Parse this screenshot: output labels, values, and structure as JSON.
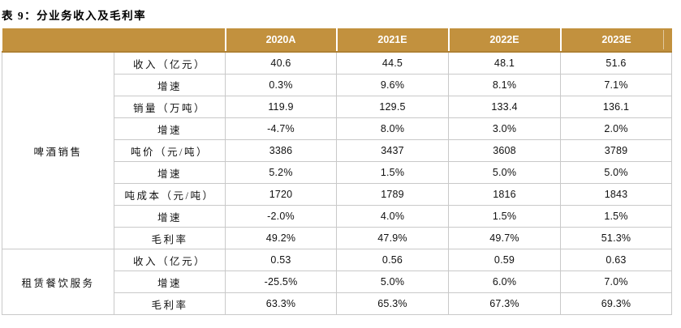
{
  "title": "表 9：分业务收入及毛利率",
  "colors": {
    "header_bg": "#C2913E",
    "header_bottom_edge": "#AF8134",
    "header_text": "#FFFFFF",
    "grid_border": "#C9C9C9",
    "body_text": "#111111"
  },
  "table": {
    "year_headers": [
      "2020A",
      "2021E",
      "2022E",
      "2023E"
    ],
    "sections": [
      {
        "group": "啤酒销售",
        "rows": [
          {
            "label": "收入（亿元）",
            "values": [
              "40.6",
              "44.5",
              "48.1",
              "51.6"
            ]
          },
          {
            "label": "增速",
            "values": [
              "0.3%",
              "9.6%",
              "8.1%",
              "7.1%"
            ]
          },
          {
            "label": "销量（万吨）",
            "values": [
              "119.9",
              "129.5",
              "133.4",
              "136.1"
            ]
          },
          {
            "label": "增速",
            "values": [
              "-4.7%",
              "8.0%",
              "3.0%",
              "2.0%"
            ]
          },
          {
            "label": "吨价（元/吨）",
            "values": [
              "3386",
              "3437",
              "3608",
              "3789"
            ]
          },
          {
            "label": "增速",
            "values": [
              "5.2%",
              "1.5%",
              "5.0%",
              "5.0%"
            ]
          },
          {
            "label": "吨成本（元/吨）",
            "values": [
              "1720",
              "1789",
              "1816",
              "1843"
            ]
          },
          {
            "label": "增速",
            "values": [
              "-2.0%",
              "4.0%",
              "1.5%",
              "1.5%"
            ]
          },
          {
            "label": "毛利率",
            "values": [
              "49.2%",
              "47.9%",
              "49.7%",
              "51.3%"
            ]
          }
        ]
      },
      {
        "group": "租赁餐饮服务",
        "rows": [
          {
            "label": "收入（亿元）",
            "values": [
              "0.53",
              "0.56",
              "0.59",
              "0.63"
            ]
          },
          {
            "label": "增速",
            "values": [
              "-25.5%",
              "5.0%",
              "6.0%",
              "7.0%"
            ]
          },
          {
            "label": "毛利率",
            "values": [
              "63.3%",
              "65.3%",
              "67.3%",
              "69.3%"
            ]
          }
        ]
      }
    ]
  }
}
